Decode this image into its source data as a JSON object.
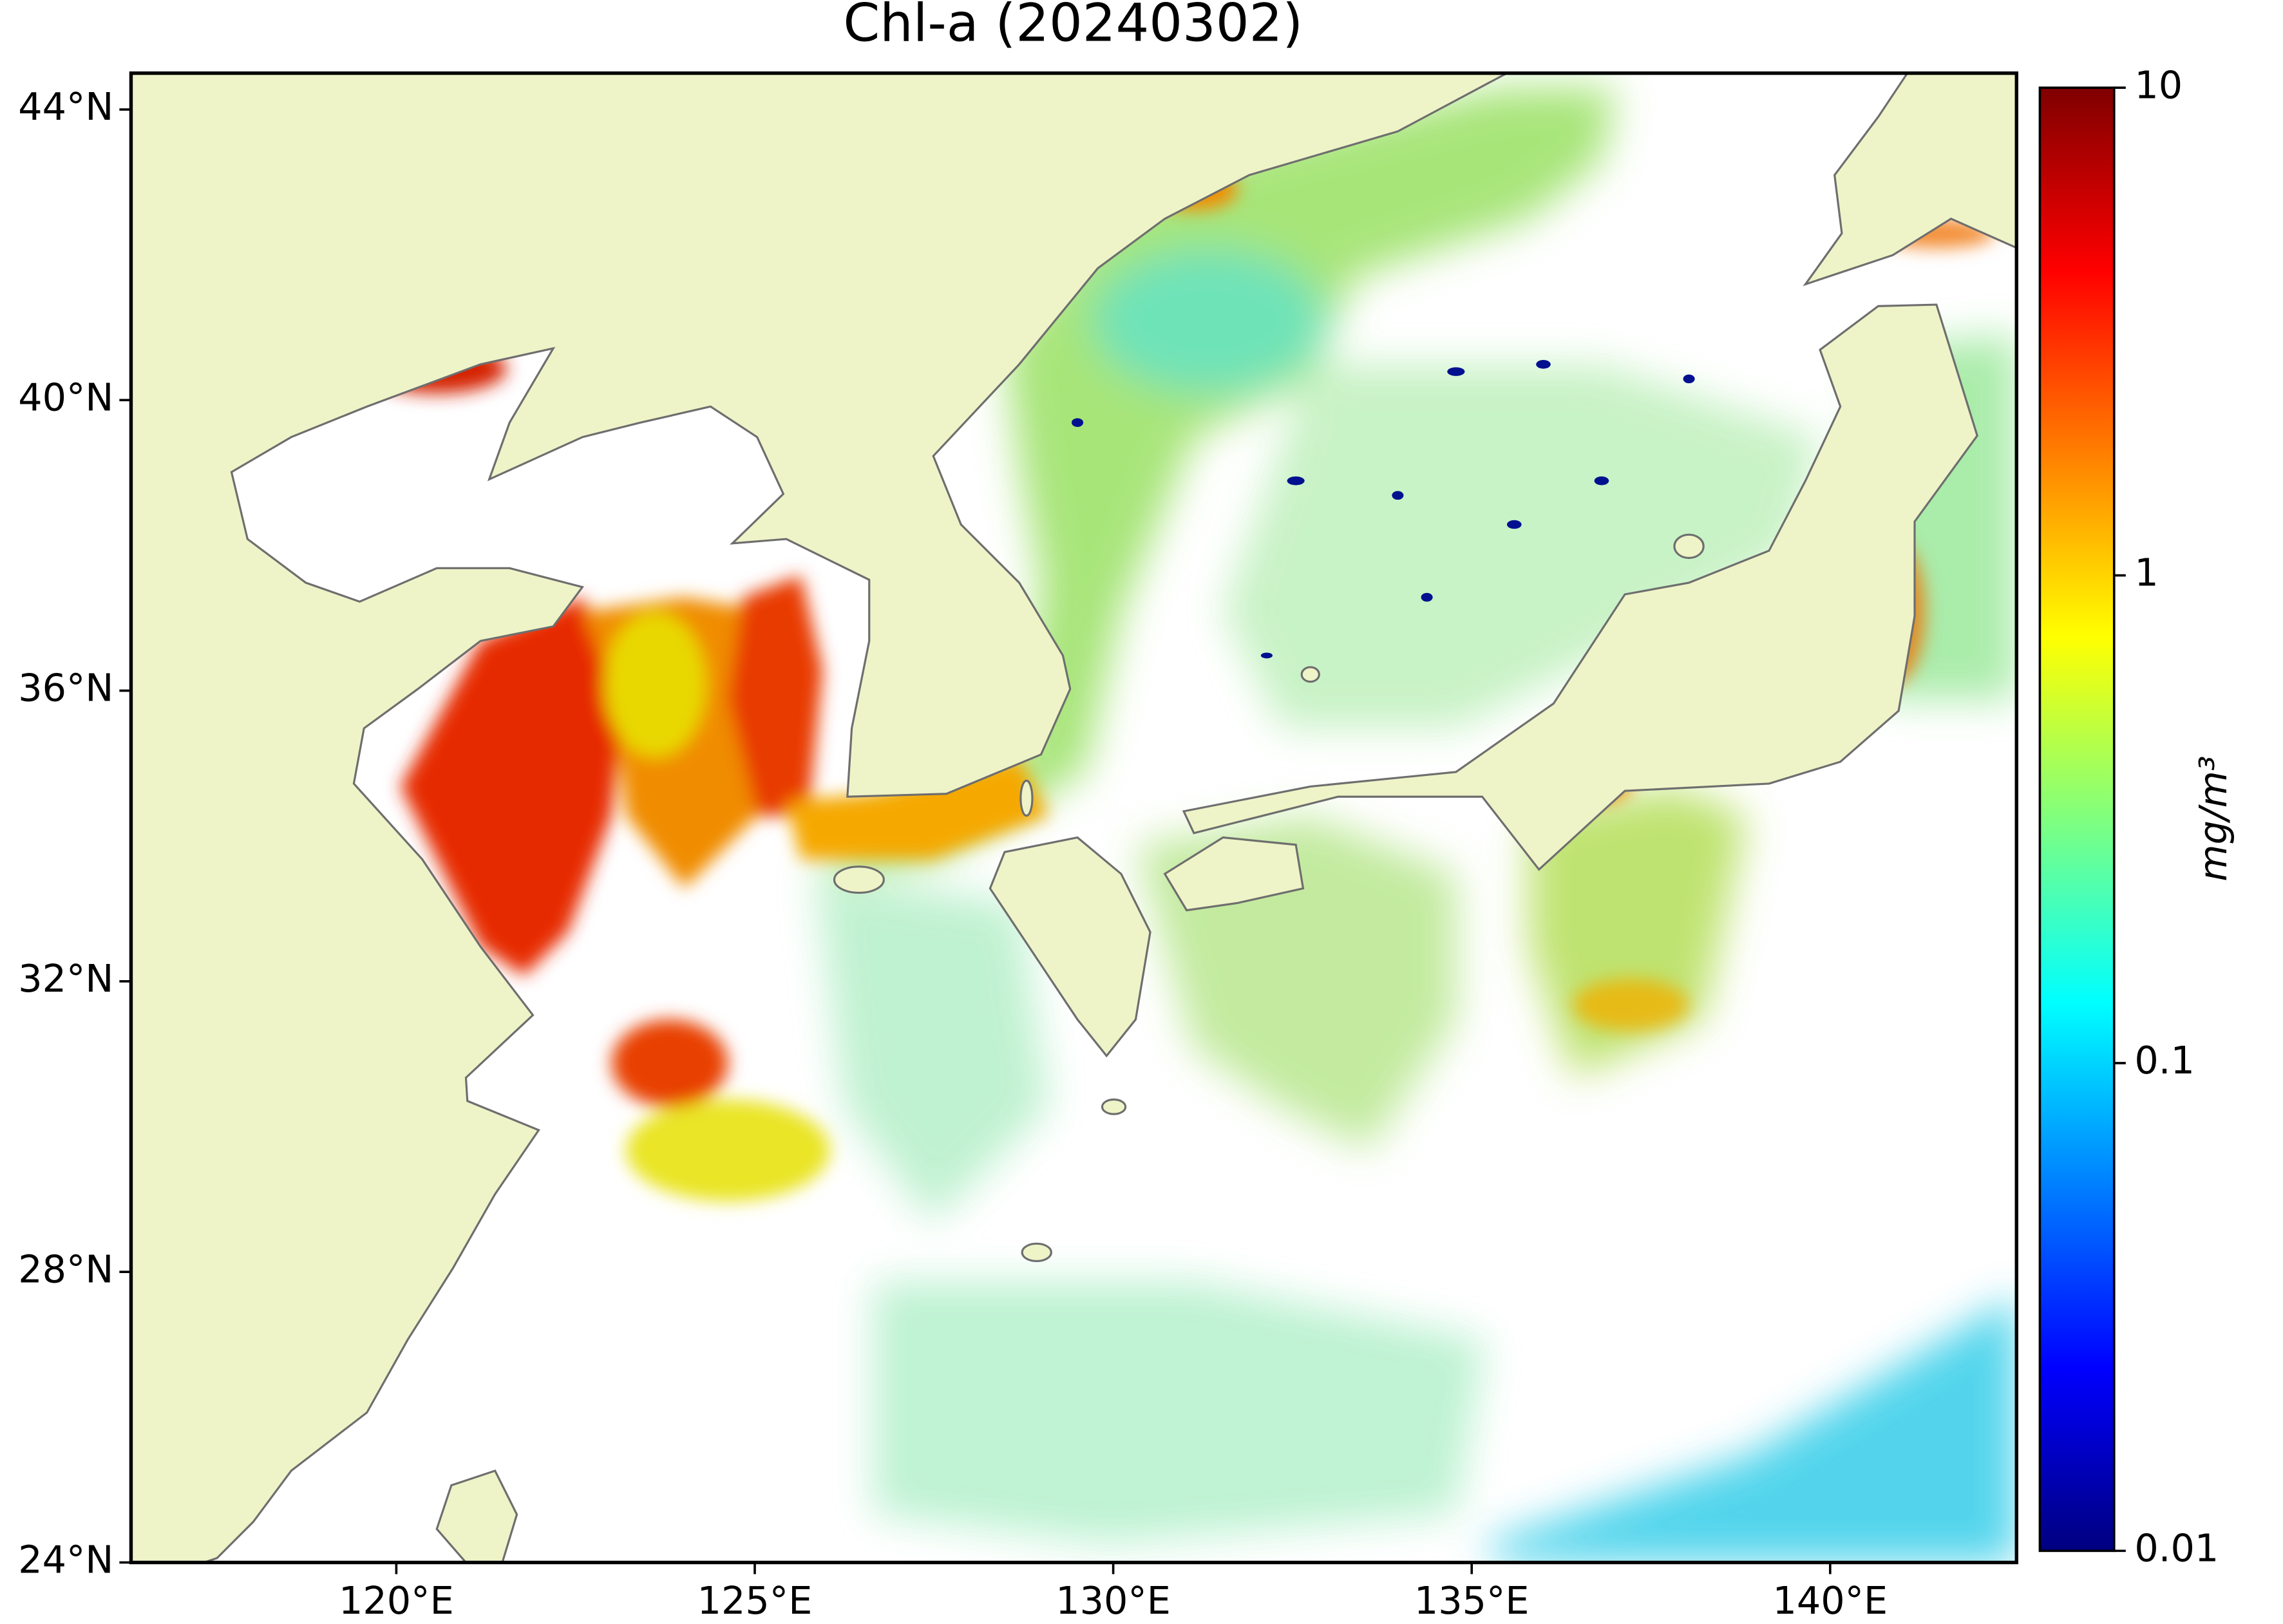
{
  "chart_data": {
    "type": "map",
    "title": "Chl-a (20240302)",
    "xlim": [
      116.3,
      142.6
    ],
    "ylim": [
      24,
      44.5
    ],
    "xticks": [
      {
        "value": 120,
        "label": "120°E"
      },
      {
        "value": 125,
        "label": "125°E"
      },
      {
        "value": 130,
        "label": "130°E"
      },
      {
        "value": 135,
        "label": "135°E"
      },
      {
        "value": 140,
        "label": "140°E"
      }
    ],
    "yticks": [
      {
        "value": 24,
        "label": "24°N"
      },
      {
        "value": 28,
        "label": "28°N"
      },
      {
        "value": 32,
        "label": "32°N"
      },
      {
        "value": 36,
        "label": "36°N"
      },
      {
        "value": 40,
        "label": "40°N"
      },
      {
        "value": 44,
        "label": "44°N"
      }
    ],
    "colorbar": {
      "label": "mg/m³",
      "scale": "log",
      "lim": [
        0.01,
        10
      ],
      "ticks": [
        0.01,
        0.1,
        1,
        10
      ],
      "colors": [
        "#00007f",
        "#0000ff",
        "#007fff",
        "#00ffff",
        "#7fff7f",
        "#ffff00",
        "#ff7f00",
        "#ff0000",
        "#7f0000"
      ]
    }
  }
}
